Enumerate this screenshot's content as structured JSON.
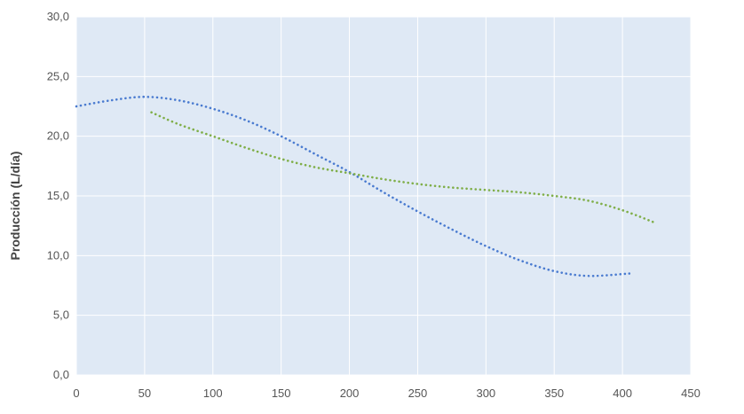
{
  "chart_data": {
    "type": "scatter",
    "ylabel": "Producción (L/día)",
    "xlabel": "",
    "xlim": [
      0,
      450
    ],
    "ylim": [
      0,
      30
    ],
    "x_ticks": [
      "0",
      "50",
      "100",
      "150",
      "200",
      "250",
      "300",
      "350",
      "400",
      "450"
    ],
    "y_ticks": [
      "0,0",
      "5,0",
      "10,0",
      "15,0",
      "20,0",
      "25,0",
      "30,0"
    ],
    "grid": true,
    "legend": "none",
    "plot_background": "#dfe9f5",
    "grid_color": "#ffffff",
    "series": [
      {
        "color": "#4a7bd0",
        "style": "dotted",
        "points": [
          [
            0,
            22.5
          ],
          [
            25,
            23.0
          ],
          [
            50,
            23.3
          ],
          [
            75,
            23.0
          ],
          [
            100,
            22.3
          ],
          [
            125,
            21.3
          ],
          [
            150,
            20.0
          ],
          [
            175,
            18.5
          ],
          [
            200,
            17.0
          ],
          [
            225,
            15.3
          ],
          [
            250,
            13.7
          ],
          [
            275,
            12.2
          ],
          [
            300,
            10.8
          ],
          [
            325,
            9.6
          ],
          [
            350,
            8.7
          ],
          [
            375,
            8.3
          ],
          [
            405,
            8.5
          ]
        ]
      },
      {
        "color": "#7fae48",
        "style": "dotted",
        "points": [
          [
            55,
            22.0
          ],
          [
            75,
            21.0
          ],
          [
            100,
            20.0
          ],
          [
            125,
            19.0
          ],
          [
            150,
            18.1
          ],
          [
            175,
            17.4
          ],
          [
            200,
            16.9
          ],
          [
            225,
            16.4
          ],
          [
            250,
            16.0
          ],
          [
            275,
            15.7
          ],
          [
            300,
            15.5
          ],
          [
            325,
            15.3
          ],
          [
            350,
            15.0
          ],
          [
            375,
            14.6
          ],
          [
            400,
            13.8
          ],
          [
            425,
            12.7
          ]
        ]
      }
    ]
  }
}
